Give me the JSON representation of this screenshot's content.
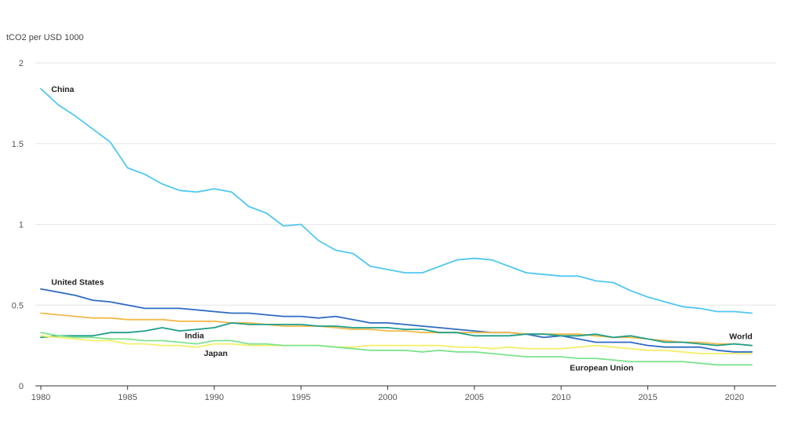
{
  "chart_data": {
    "type": "line",
    "ylabel": "tCO2 per USD 1000",
    "xlim": [
      1980,
      2021
    ],
    "ylim": [
      0,
      2
    ],
    "x_ticks": [
      1980,
      1985,
      1990,
      1995,
      2000,
      2005,
      2010,
      2015,
      2020
    ],
    "y_ticks": [
      0,
      0.5,
      1,
      1.5,
      2
    ],
    "y_tick_labels": [
      "0",
      "0.5",
      "1",
      "1.5",
      "2"
    ],
    "grid": true,
    "x": [
      1980,
      1981,
      1982,
      1983,
      1984,
      1985,
      1986,
      1987,
      1988,
      1989,
      1990,
      1991,
      1992,
      1993,
      1994,
      1995,
      1996,
      1997,
      1998,
      1999,
      2000,
      2001,
      2002,
      2003,
      2004,
      2005,
      2006,
      2007,
      2008,
      2009,
      2010,
      2011,
      2012,
      2013,
      2014,
      2015,
      2016,
      2017,
      2018,
      2019,
      2020,
      2021
    ],
    "series": [
      {
        "name": "China",
        "color": "#4fc8f0",
        "values": [
          1.84,
          1.74,
          1.67,
          1.59,
          1.51,
          1.35,
          1.31,
          1.25,
          1.21,
          1.2,
          1.22,
          1.2,
          1.11,
          1.07,
          0.99,
          1.0,
          0.9,
          0.84,
          0.82,
          0.74,
          0.72,
          0.7,
          0.7,
          0.74,
          0.78,
          0.79,
          0.78,
          0.74,
          0.7,
          0.69,
          0.68,
          0.68,
          0.65,
          0.64,
          0.59,
          0.55,
          0.52,
          0.49,
          0.48,
          0.46,
          0.46,
          0.45
        ]
      },
      {
        "name": "United States",
        "color": "#2f6bc2",
        "values": [
          0.6,
          0.58,
          0.56,
          0.53,
          0.52,
          0.5,
          0.48,
          0.48,
          0.48,
          0.47,
          0.46,
          0.45,
          0.45,
          0.44,
          0.43,
          0.43,
          0.42,
          0.43,
          0.41,
          0.39,
          0.39,
          0.38,
          0.37,
          0.36,
          0.35,
          0.34,
          0.33,
          0.33,
          0.32,
          0.3,
          0.31,
          0.29,
          0.27,
          0.27,
          0.27,
          0.25,
          0.24,
          0.24,
          0.24,
          0.22,
          0.21,
          0.21
        ]
      },
      {
        "name": "World",
        "color": "#f2b84b",
        "values": [
          0.45,
          0.44,
          0.43,
          0.42,
          0.42,
          0.41,
          0.41,
          0.41,
          0.4,
          0.4,
          0.4,
          0.39,
          0.39,
          0.38,
          0.37,
          0.37,
          0.37,
          0.36,
          0.35,
          0.35,
          0.34,
          0.34,
          0.33,
          0.33,
          0.33,
          0.33,
          0.33,
          0.33,
          0.32,
          0.32,
          0.32,
          0.32,
          0.31,
          0.3,
          0.3,
          0.29,
          0.28,
          0.27,
          0.27,
          0.26,
          0.26,
          0.25
        ]
      },
      {
        "name": "India",
        "color": "#1f9e8a",
        "values": [
          0.3,
          0.31,
          0.31,
          0.31,
          0.33,
          0.33,
          0.34,
          0.36,
          0.34,
          0.35,
          0.36,
          0.39,
          0.38,
          0.38,
          0.38,
          0.38,
          0.37,
          0.37,
          0.36,
          0.36,
          0.36,
          0.35,
          0.35,
          0.33,
          0.33,
          0.31,
          0.31,
          0.31,
          0.32,
          0.32,
          0.31,
          0.31,
          0.32,
          0.3,
          0.31,
          0.29,
          0.27,
          0.27,
          0.26,
          0.25,
          0.26,
          0.25
        ]
      },
      {
        "name": "Japan",
        "color": "#f3ef6a",
        "values": [
          0.31,
          0.3,
          0.29,
          0.28,
          0.28,
          0.26,
          0.26,
          0.25,
          0.25,
          0.24,
          0.26,
          0.26,
          0.25,
          0.25,
          0.25,
          0.25,
          0.25,
          0.24,
          0.24,
          0.25,
          0.25,
          0.25,
          0.25,
          0.25,
          0.24,
          0.24,
          0.23,
          0.24,
          0.23,
          0.23,
          0.23,
          0.24,
          0.25,
          0.24,
          0.23,
          0.22,
          0.22,
          0.21,
          0.2,
          0.2,
          0.2,
          0.2
        ]
      },
      {
        "name": "European Union",
        "color": "#7de38f",
        "values": [
          0.33,
          0.31,
          0.3,
          0.3,
          0.29,
          0.29,
          0.28,
          0.28,
          0.27,
          0.26,
          0.28,
          0.28,
          0.26,
          0.26,
          0.25,
          0.25,
          0.25,
          0.24,
          0.23,
          0.22,
          0.22,
          0.22,
          0.21,
          0.22,
          0.21,
          0.21,
          0.2,
          0.19,
          0.18,
          0.18,
          0.18,
          0.17,
          0.17,
          0.16,
          0.15,
          0.15,
          0.15,
          0.15,
          0.14,
          0.13,
          0.13,
          0.13
        ]
      }
    ],
    "series_labels": [
      {
        "series": "China",
        "text": "China",
        "x": 1980.6,
        "y": 1.82
      },
      {
        "series": "United States",
        "text": "United States",
        "x": 1980.6,
        "y": 0.625
      },
      {
        "series": "World",
        "text": "World",
        "x": 2019.7,
        "y": 0.29
      },
      {
        "series": "India",
        "text": "India",
        "x": 1988.3,
        "y": 0.295
      },
      {
        "series": "Japan",
        "text": "Japan",
        "x": 1989.4,
        "y": 0.185
      },
      {
        "series": "European Union",
        "text": "European Union",
        "x": 2010.5,
        "y": 0.095
      }
    ]
  }
}
